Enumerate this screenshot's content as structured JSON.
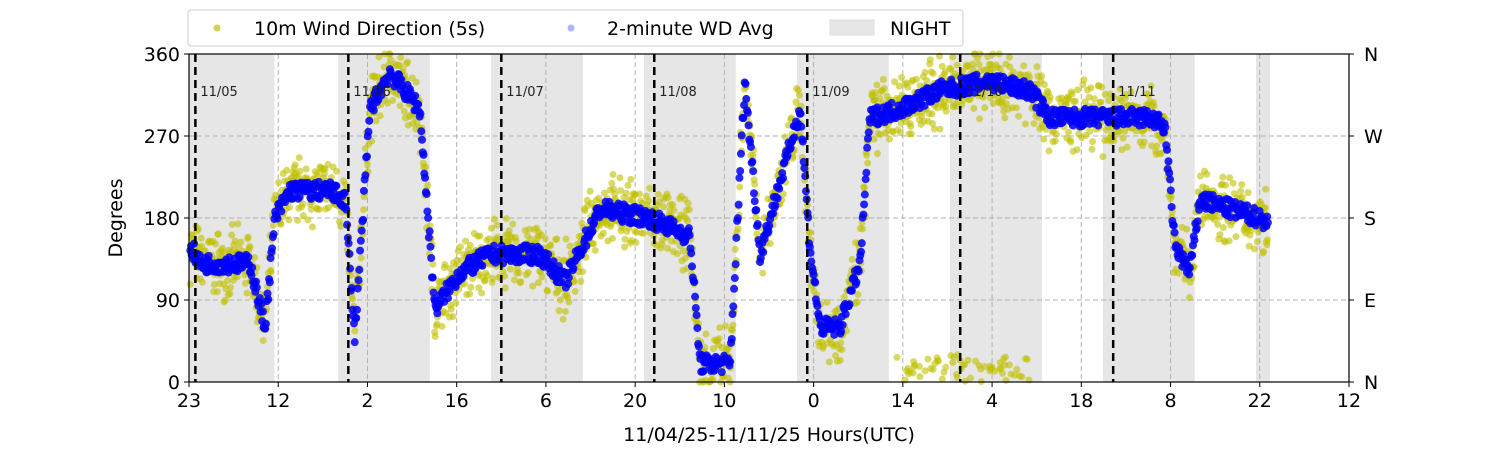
{
  "chart_data": {
    "type": "scatter",
    "xlabel": "11/04/25-11/11/25  Hours(UTC)",
    "ylabel": "Degrees",
    "xlim_hours_from_start": [
      0,
      182
    ],
    "ylim": [
      0,
      360
    ],
    "x_tick_labels": [
      "23",
      "12",
      "2",
      "16",
      "6",
      "20",
      "10",
      "0",
      "14",
      "4",
      "18",
      "8",
      "22",
      "12"
    ],
    "x_tick_step_hours": 14,
    "y_ticks": [
      0,
      90,
      180,
      270,
      360
    ],
    "y_tick_labels": [
      "0",
      "90",
      "180",
      "270",
      "360"
    ],
    "right_tick_labels": [
      "N",
      "E",
      "S",
      "W",
      "N"
    ],
    "grid": true,
    "legend": {
      "placement": "top-center-outside",
      "entries": [
        {
          "label": "10m Wind Direction (5s)",
          "color": "#bfbf00"
        },
        {
          "label": "2-minute WD Avg",
          "color": "#0000ff"
        },
        {
          "label": "NIGHT",
          "color": "#e6e6e6"
        }
      ]
    },
    "day_markers": [
      {
        "label": "11/05",
        "hour": 1
      },
      {
        "label": "11/06",
        "hour": 25
      },
      {
        "label": "11/07",
        "hour": 49
      },
      {
        "label": "11/08",
        "hour": 73
      },
      {
        "label": "11/09",
        "hour": 97
      },
      {
        "label": "11/10",
        "hour": 121
      },
      {
        "label": "11/11",
        "hour": 145
      }
    ],
    "night_periods_hours": [
      [
        0,
        13.4
      ],
      [
        23.4,
        37.8
      ],
      [
        47.4,
        61.8
      ],
      [
        71.4,
        85.8
      ],
      [
        95.4,
        109.8
      ],
      [
        119.4,
        133.8
      ],
      [
        143.4,
        157.8
      ],
      [
        167.4,
        169.6
      ]
    ],
    "series_2min_avg_keyframes": [
      [
        0.2,
        150
      ],
      [
        1.7,
        130
      ],
      [
        9.6,
        130
      ],
      [
        11.9,
        60
      ],
      [
        13.5,
        180
      ],
      [
        15.8,
        210
      ],
      [
        22.1,
        210
      ],
      [
        24.5,
        200
      ],
      [
        26,
        50
      ],
      [
        28.4,
        300
      ],
      [
        31.5,
        340
      ],
      [
        36.2,
        300
      ],
      [
        38.6,
        80
      ],
      [
        42.5,
        120
      ],
      [
        47.2,
        140
      ],
      [
        55.1,
        140
      ],
      [
        59,
        110
      ],
      [
        64.5,
        190
      ],
      [
        72.3,
        180
      ],
      [
        78.6,
        160
      ],
      [
        80.2,
        20
      ],
      [
        84.9,
        20
      ],
      [
        87.2,
        330
      ],
      [
        89.6,
        140
      ],
      [
        95.9,
        300
      ],
      [
        97.4,
        150
      ],
      [
        99,
        60
      ],
      [
        102.1,
        60
      ],
      [
        105.3,
        130
      ],
      [
        106.8,
        290
      ],
      [
        111.5,
        300
      ],
      [
        117.8,
        320
      ],
      [
        125.6,
        330
      ],
      [
        131.9,
        320
      ],
      [
        135.1,
        290
      ],
      [
        142.9,
        290
      ],
      [
        150.8,
        290
      ],
      [
        153.1,
        280
      ],
      [
        154.7,
        150
      ],
      [
        157,
        120
      ],
      [
        158.6,
        200
      ],
      [
        168,
        180
      ],
      [
        169.3,
        175
      ]
    ],
    "series_5s_spread_deg": 30,
    "series_2min_spread_deg": 10
  }
}
